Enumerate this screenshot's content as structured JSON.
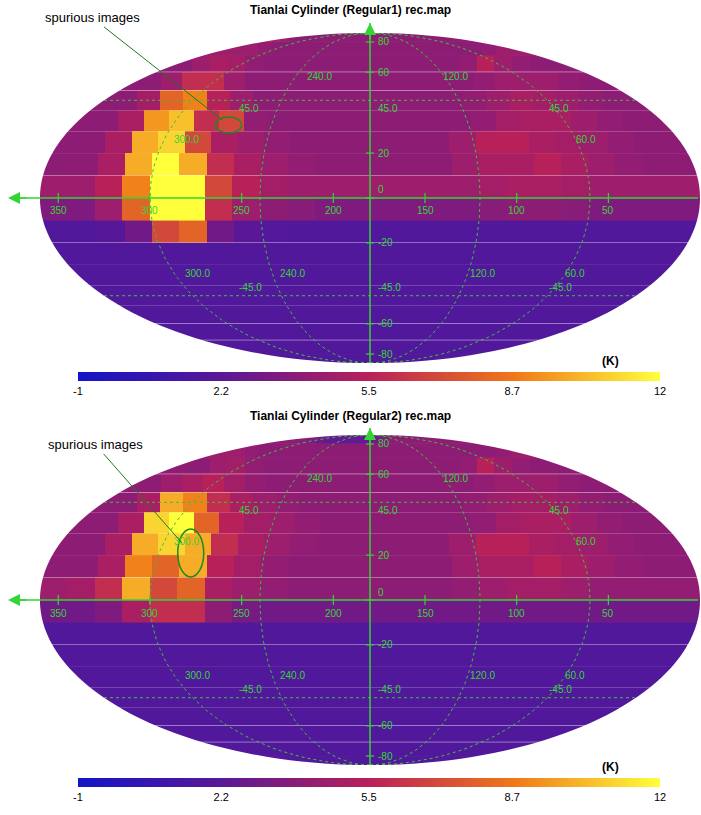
{
  "chart_data": [
    {
      "type": "heatmap",
      "title": "Tianlai Cylinder (Regular1) rec.map",
      "x": [
        352.5,
        337.5,
        322.5,
        307.5,
        292.5,
        277.5,
        262.5,
        247.5,
        232.5,
        217.5,
        202.5,
        187.5,
        172.5,
        157.5,
        142.5,
        127.5,
        112.5,
        97.5,
        82.5,
        67.5,
        52.5,
        37.5,
        22.5,
        7.5
      ],
      "y": [
        85,
        75,
        65,
        55,
        45,
        35,
        25,
        15,
        5,
        -5,
        -15,
        -25,
        -35,
        -45,
        -55,
        -65,
        -75,
        -85
      ],
      "cells": [
        [
          5.5,
          5,
          4.5,
          4,
          4,
          4,
          4,
          4,
          4,
          4,
          4,
          4,
          4,
          4,
          4,
          4,
          4,
          4,
          4,
          4,
          4,
          4,
          4,
          4
        ],
        [
          4.5,
          4.5,
          4.5,
          4.5,
          4.2,
          4,
          4,
          4,
          4,
          4,
          4,
          4,
          4,
          4,
          4,
          4,
          4,
          4,
          4,
          4,
          4.2,
          4.5,
          4.5,
          4.5
        ],
        [
          4,
          4,
          4.5,
          5,
          4.8,
          4.2,
          4,
          4,
          4,
          4,
          4,
          4,
          4,
          4,
          4,
          4,
          4,
          4.2,
          5.5,
          4.5,
          4.2,
          4,
          4,
          4
        ],
        [
          4,
          4,
          4.5,
          6,
          6,
          4.5,
          4,
          4,
          4,
          4,
          4,
          4,
          4,
          4,
          4,
          4,
          4,
          4.2,
          4.5,
          4.5,
          4.5,
          4.2,
          4,
          4
        ],
        [
          4,
          4,
          4.8,
          8,
          9,
          5.5,
          4.5,
          4,
          4,
          4,
          4,
          4,
          4,
          4,
          4,
          4,
          4.2,
          4.5,
          5,
          4.8,
          4.5,
          4.2,
          4,
          4
        ],
        [
          4,
          4,
          5,
          9.5,
          10.5,
          6,
          7,
          4.2,
          4,
          4,
          4,
          4,
          4,
          4,
          4,
          4,
          4.2,
          4.8,
          5,
          5,
          4.5,
          4.2,
          4,
          4
        ],
        [
          4,
          4,
          5,
          10,
          11,
          7,
          5,
          4.5,
          4.2,
          4,
          4,
          4,
          4,
          4,
          4,
          4.5,
          5.5,
          5.5,
          5,
          4.8,
          4.5,
          4.2,
          4,
          4
        ],
        [
          4,
          4,
          5,
          10,
          12,
          10,
          6,
          5,
          4.5,
          4.2,
          4,
          4,
          4,
          4,
          4,
          4.5,
          5,
          5,
          5.5,
          5,
          4.5,
          4.2,
          4,
          4
        ],
        [
          4.5,
          4.5,
          5.5,
          9,
          12,
          12,
          7,
          5.5,
          4.8,
          4.5,
          4.5,
          4.5,
          4.5,
          4.5,
          4.5,
          4.5,
          4.8,
          5,
          5,
          4.8,
          4.5,
          4.5,
          4.5,
          4.5
        ],
        [
          3.5,
          3.5,
          4.5,
          8,
          12,
          12,
          6,
          4.5,
          4,
          3.8,
          3.5,
          3.5,
          3.5,
          3.5,
          3.5,
          3.5,
          3.8,
          4,
          4,
          3.8,
          3.5,
          3.5,
          3.5,
          3.5
        ],
        [
          1.8,
          1.8,
          2,
          3,
          7,
          8,
          3,
          2.2,
          1.9,
          1.8,
          1.8,
          1.8,
          1.8,
          1.8,
          1.8,
          1.8,
          1.8,
          1.8,
          1.8,
          1.8,
          1.8,
          1.8,
          1.8,
          1.8
        ],
        [
          1.8,
          1.8,
          1.8,
          1.8,
          1.8,
          1.8,
          1.8,
          1.8,
          1.8,
          1.8,
          1.8,
          1.8,
          1.8,
          1.8,
          1.8,
          1.8,
          1.8,
          1.8,
          1.8,
          1.8,
          1.8,
          1.8,
          1.8,
          1.8
        ],
        [
          1.8,
          1.8,
          1.8,
          1.8,
          1.8,
          1.8,
          1.8,
          1.8,
          1.8,
          1.8,
          1.8,
          1.8,
          1.8,
          1.8,
          1.8,
          1.8,
          1.8,
          1.8,
          1.8,
          1.8,
          1.8,
          1.8,
          1.8,
          1.8
        ],
        [
          1.8,
          1.8,
          1.8,
          1.8,
          1.8,
          1.8,
          1.8,
          1.8,
          1.8,
          1.8,
          1.8,
          1.8,
          1.8,
          1.8,
          1.8,
          1.8,
          1.8,
          1.8,
          1.8,
          1.8,
          1.8,
          1.8,
          1.8,
          1.8
        ],
        [
          1.8,
          1.8,
          1.8,
          1.8,
          1.8,
          1.8,
          1.8,
          1.8,
          1.8,
          1.8,
          1.8,
          1.8,
          1.8,
          1.8,
          1.8,
          1.8,
          1.8,
          1.8,
          1.8,
          1.8,
          1.8,
          1.8,
          1.8,
          1.8
        ],
        [
          1.8,
          1.8,
          1.8,
          1.8,
          1.8,
          1.8,
          1.8,
          1.8,
          1.8,
          1.8,
          1.8,
          1.8,
          1.8,
          1.8,
          1.8,
          1.8,
          1.8,
          1.8,
          1.8,
          1.8,
          1.8,
          1.8,
          1.8,
          1.8
        ],
        [
          1.8,
          1.8,
          1.8,
          1.8,
          1.8,
          1.8,
          1.8,
          1.8,
          1.8,
          1.8,
          1.8,
          1.8,
          1.8,
          1.8,
          1.8,
          1.8,
          1.8,
          1.8,
          1.8,
          1.8,
          1.8,
          1.8,
          1.8,
          1.8
        ],
        [
          1.8,
          1.8,
          1.8,
          1.8,
          1.8,
          1.8,
          1.8,
          1.8,
          1.8,
          1.8,
          1.8,
          1.8,
          1.8,
          1.8,
          1.8,
          1.8,
          1.8,
          1.8,
          1.8,
          1.8,
          1.8,
          1.8,
          1.8,
          1.8
        ]
      ],
      "xlim": [
        360,
        0
      ],
      "ylim": [
        -90,
        90
      ],
      "xticks": [
        350,
        300,
        250,
        200,
        150,
        100,
        50
      ],
      "yticks": [
        80,
        60,
        20,
        0,
        -20,
        -60,
        -80
      ],
      "colorbar": {
        "range": [
          -1,
          12
        ],
        "ticks": [
          -1,
          2.2,
          5.5,
          8.7,
          12
        ],
        "unit": "(K)"
      },
      "graticule": {
        "meridians": [
          300,
          240,
          120,
          60
        ],
        "parallels": [
          45,
          -45
        ],
        "labels": [
          {
            "text": "300.0",
            "x": 300,
            "y": 30
          },
          {
            "text": "240.0",
            "x": 240,
            "y": 62
          },
          {
            "text": "120.0",
            "x": 120,
            "y": 62
          },
          {
            "text": "60.0",
            "x": 60,
            "y": 30
          },
          {
            "text": "45.0",
            "x": 272,
            "y": 45
          },
          {
            "text": "45.0",
            "x": 178,
            "y": 45
          },
          {
            "text": "45.0",
            "x": 62,
            "y": 45
          },
          {
            "text": "300.0",
            "x": 300,
            "y": -38
          },
          {
            "text": "240.0",
            "x": 240,
            "y": -38
          },
          {
            "text": "120.0",
            "x": 120,
            "y": -38
          },
          {
            "text": "60.0",
            "x": 60,
            "y": -38
          },
          {
            "text": "-45.0",
            "x": 272,
            "y": -45
          },
          {
            "text": "-45.0",
            "x": 178,
            "y": -45
          },
          {
            "text": "-45.0",
            "x": 62,
            "y": -45
          }
        ]
      },
      "annotations": [
        {
          "text": "spurious images",
          "x": 266,
          "y": 33
        }
      ]
    },
    {
      "type": "heatmap",
      "title": "Tianlai Cylinder (Regular2) rec.map",
      "x": [
        352.5,
        337.5,
        322.5,
        307.5,
        292.5,
        277.5,
        262.5,
        247.5,
        232.5,
        217.5,
        202.5,
        187.5,
        172.5,
        157.5,
        142.5,
        127.5,
        112.5,
        97.5,
        82.5,
        67.5,
        52.5,
        37.5,
        22.5,
        7.5
      ],
      "y": [
        85,
        75,
        65,
        55,
        45,
        35,
        25,
        15,
        5,
        -5,
        -15,
        -25,
        -35,
        -45,
        -55,
        -65,
        -75,
        -85
      ],
      "cells": [
        [
          4,
          4,
          4,
          4,
          4,
          3.5,
          3,
          2.5,
          2.5,
          2.5,
          2.5,
          2.5,
          3,
          3.5,
          4,
          4,
          4,
          4,
          4,
          4,
          4,
          4,
          4,
          4
        ],
        [
          4.5,
          4.5,
          4.5,
          4.2,
          4,
          4,
          4,
          4,
          4,
          4,
          4,
          4,
          4,
          4,
          4,
          4,
          4,
          4,
          4,
          4,
          4,
          4.2,
          4.5,
          4.5
        ],
        [
          4,
          4,
          4,
          4.5,
          4.8,
          4.2,
          4,
          4,
          4,
          4,
          4,
          4,
          4,
          4,
          4,
          4,
          4,
          4.2,
          5.5,
          4.5,
          4.2,
          4,
          4,
          4
        ],
        [
          4,
          4,
          4.5,
          5,
          5.5,
          4.8,
          4.2,
          4,
          4,
          4,
          4,
          4,
          4,
          4,
          4,
          4,
          4,
          4.2,
          4.5,
          4.5,
          4.5,
          4.2,
          4,
          4
        ],
        [
          4,
          4,
          5,
          10,
          9,
          6,
          5,
          4.5,
          4.2,
          4,
          4,
          4,
          4,
          4,
          4,
          4,
          4.2,
          4.5,
          4.8,
          4.8,
          4.5,
          4.2,
          4,
          4
        ],
        [
          4,
          4,
          5,
          11,
          12,
          8,
          5.5,
          4.8,
          4.5,
          4.2,
          4,
          4,
          4,
          4,
          4,
          4,
          4.2,
          4.8,
          5,
          5,
          4.5,
          4.2,
          4,
          4
        ],
        [
          4,
          4,
          5,
          10,
          11,
          10,
          6,
          5,
          4.5,
          4.2,
          4,
          4,
          4,
          4,
          4,
          4.5,
          5.5,
          5.5,
          5,
          4.8,
          4.5,
          4.2,
          4,
          4
        ],
        [
          4,
          4,
          5,
          9,
          8,
          10,
          5.5,
          4.8,
          4.2,
          4,
          4,
          4,
          4,
          4,
          4,
          4.5,
          5,
          5,
          5.5,
          5,
          4.5,
          4.2,
          4,
          4
        ],
        [
          4.5,
          4.8,
          6,
          10,
          7,
          8,
          5,
          4.5,
          4.2,
          4,
          4,
          4,
          4,
          4,
          4,
          4.2,
          4.5,
          4.8,
          4.8,
          4.5,
          4.2,
          4.2,
          4.2,
          4.2
        ],
        [
          3,
          3,
          3.5,
          5,
          6,
          6,
          4,
          3.2,
          3,
          3,
          3,
          3,
          3,
          3,
          3,
          3,
          3,
          3,
          3,
          3,
          3,
          3,
          3,
          3
        ],
        [
          1.8,
          1.8,
          1.8,
          1.8,
          1.8,
          1.8,
          1.8,
          1.8,
          1.8,
          1.8,
          1.8,
          1.8,
          1.8,
          1.8,
          1.8,
          1.8,
          1.8,
          1.8,
          1.8,
          1.8,
          1.8,
          1.8,
          1.8,
          1.8
        ],
        [
          1.8,
          1.8,
          1.8,
          1.8,
          1.8,
          1.8,
          1.8,
          1.8,
          1.8,
          1.8,
          1.8,
          1.8,
          1.8,
          1.8,
          1.8,
          1.8,
          1.8,
          1.8,
          1.8,
          1.8,
          1.8,
          1.8,
          1.8,
          1.8
        ],
        [
          1.8,
          1.8,
          1.8,
          1.8,
          1.8,
          1.8,
          1.8,
          1.8,
          1.8,
          1.8,
          1.8,
          1.8,
          1.8,
          1.8,
          1.8,
          1.8,
          1.8,
          1.8,
          1.8,
          1.8,
          1.8,
          1.8,
          1.8,
          1.8
        ],
        [
          1.8,
          1.8,
          1.8,
          1.8,
          1.8,
          1.8,
          1.8,
          1.8,
          1.8,
          1.8,
          1.8,
          1.8,
          1.8,
          1.8,
          1.8,
          1.8,
          1.8,
          1.8,
          1.8,
          1.8,
          1.8,
          1.8,
          1.8,
          1.8
        ],
        [
          1.8,
          1.8,
          1.8,
          1.8,
          1.8,
          1.8,
          1.8,
          1.8,
          1.8,
          1.8,
          1.8,
          1.8,
          1.8,
          1.8,
          1.8,
          1.8,
          1.8,
          1.8,
          1.8,
          1.8,
          1.8,
          1.8,
          1.8,
          1.8
        ],
        [
          1.8,
          1.8,
          1.8,
          1.8,
          1.8,
          1.8,
          1.8,
          1.8,
          1.8,
          1.8,
          1.8,
          1.8,
          1.8,
          1.8,
          1.8,
          1.8,
          1.8,
          1.8,
          1.8,
          1.8,
          1.8,
          1.8,
          1.8,
          1.8
        ],
        [
          1.8,
          1.8,
          1.8,
          1.8,
          1.8,
          1.8,
          1.8,
          1.8,
          1.8,
          1.8,
          1.8,
          1.8,
          1.8,
          1.8,
          1.8,
          1.8,
          1.8,
          1.8,
          1.8,
          1.8,
          1.8,
          1.8,
          1.8,
          1.8
        ],
        [
          1.8,
          1.8,
          1.8,
          1.8,
          1.8,
          1.8,
          1.8,
          1.8,
          1.8,
          1.8,
          1.8,
          1.8,
          1.8,
          1.8,
          1.8,
          1.8,
          1.8,
          1.8,
          1.8,
          1.8,
          1.8,
          1.8,
          1.8,
          1.8
        ]
      ],
      "xlim": [
        360,
        0
      ],
      "ylim": [
        -90,
        90
      ],
      "xticks": [
        350,
        300,
        250,
        200,
        150,
        100,
        50
      ],
      "yticks": [
        80,
        60,
        20,
        0,
        -20,
        -60,
        -80
      ],
      "colorbar": {
        "range": [
          -1,
          12
        ],
        "ticks": [
          -1,
          2.2,
          5.5,
          8.7,
          12
        ],
        "unit": "(K)"
      },
      "graticule": {
        "meridians": [
          300,
          240,
          120,
          60
        ],
        "parallels": [
          45,
          -45
        ],
        "labels": [
          {
            "text": "300.0",
            "x": 300,
            "y": 30
          },
          {
            "text": "240.0",
            "x": 240,
            "y": 62
          },
          {
            "text": "120.0",
            "x": 120,
            "y": 62
          },
          {
            "text": "60.0",
            "x": 60,
            "y": 30
          },
          {
            "text": "45.0",
            "x": 272,
            "y": 45
          },
          {
            "text": "45.0",
            "x": 178,
            "y": 45
          },
          {
            "text": "45.0",
            "x": 62,
            "y": 45
          },
          {
            "text": "300.0",
            "x": 300,
            "y": -38
          },
          {
            "text": "240.0",
            "x": 240,
            "y": -38
          },
          {
            "text": "120.0",
            "x": 120,
            "y": -38
          },
          {
            "text": "60.0",
            "x": 60,
            "y": -38
          },
          {
            "text": "-45.0",
            "x": 272,
            "y": -45
          },
          {
            "text": "-45.0",
            "x": 178,
            "y": -45
          },
          {
            "text": "-45.0",
            "x": 62,
            "y": -45
          }
        ]
      },
      "annotations": [
        {
          "text": "spurious images",
          "x": 282,
          "y": 21
        }
      ]
    }
  ]
}
